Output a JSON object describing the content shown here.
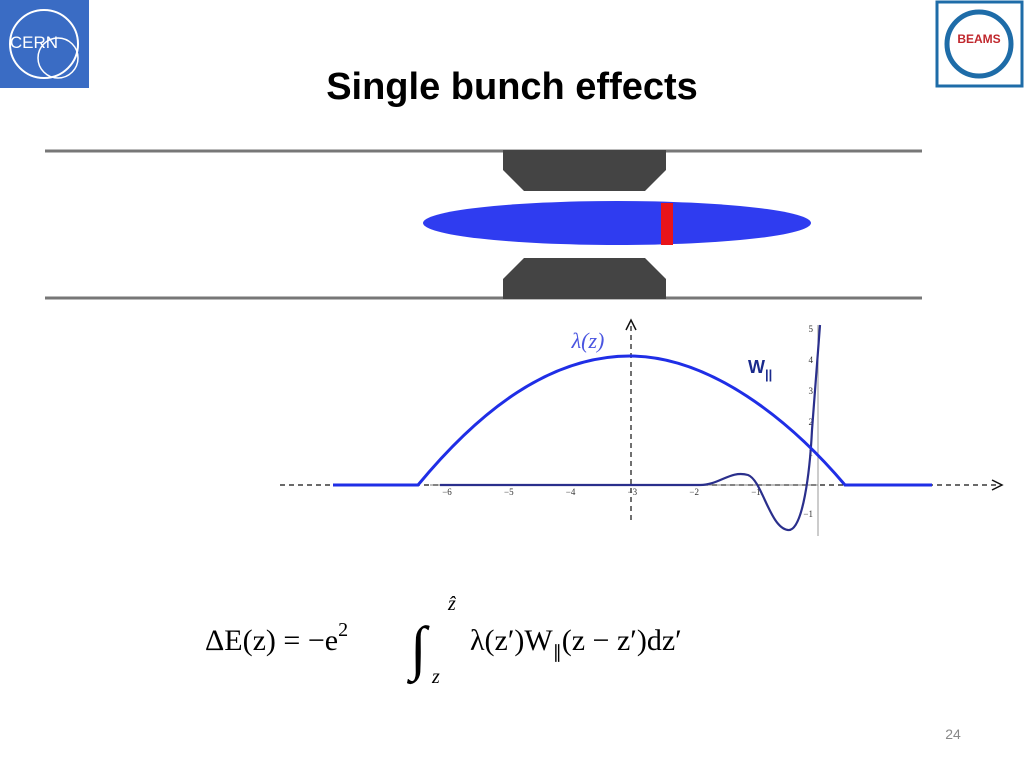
{
  "header": {
    "title": "Single bunch effects",
    "logo_left": "CERN",
    "logo_right": "BEAMS"
  },
  "diagram": {
    "bunch_label": "λ(z)",
    "wake_label": "W",
    "wake_label_sub": "||",
    "x_ticks": [
      "−6",
      "−5",
      "−4",
      "−3",
      "−2",
      "−1"
    ],
    "y_ticks": [
      "5",
      "4",
      "3",
      "2",
      "1",
      "−1"
    ]
  },
  "equation": {
    "lhs": "ΔE(z) = −e",
    "lhs_sup": "2",
    "integral": "∫",
    "upper": "ẑ",
    "lower": "z",
    "body": "λ(z′)W",
    "body_sub": "∥",
    "tail": "(z − z′)dz′"
  },
  "footer": {
    "page_number": "24"
  }
}
